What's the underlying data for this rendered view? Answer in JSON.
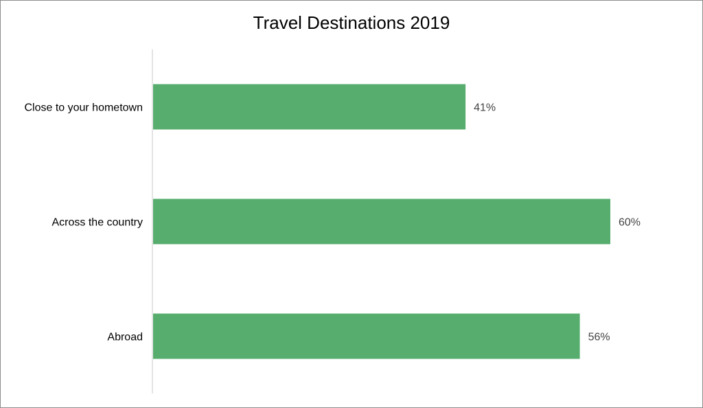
{
  "chart_data": {
    "type": "bar",
    "orientation": "horizontal",
    "title": "Travel Destinations 2019",
    "categories": [
      "Close to your hometown",
      "Across the country",
      "Abroad"
    ],
    "values": [
      41,
      60,
      56
    ],
    "value_suffix": "%",
    "xlim": [
      0,
      70
    ],
    "grid": false,
    "legend": "none",
    "bar_color": "#57ad6e",
    "axis_color": "#c8c8c8"
  }
}
